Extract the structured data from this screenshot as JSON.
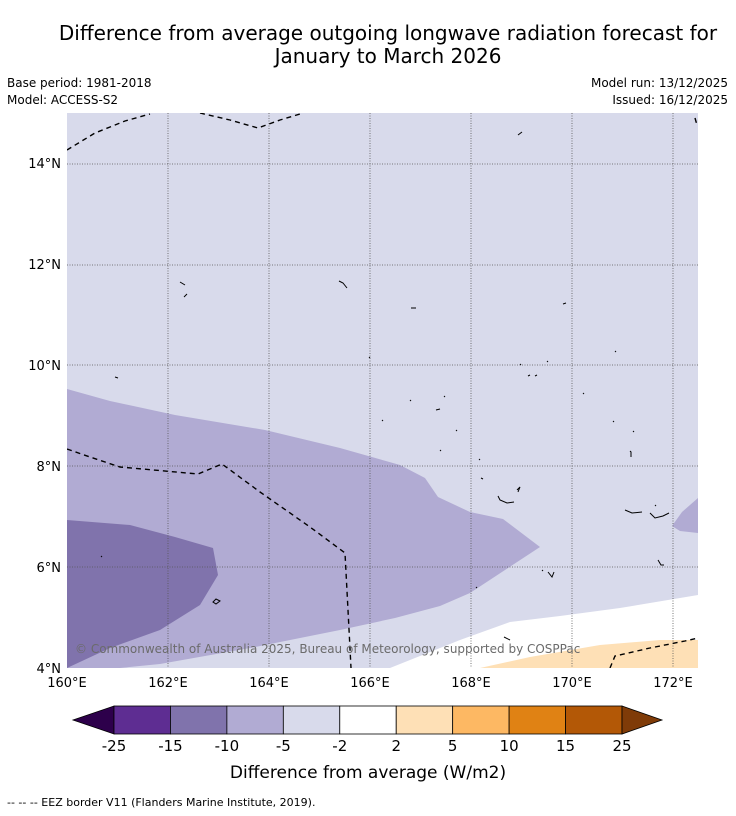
{
  "title": {
    "line1": "Difference from average outgoing longwave radiation forecast for",
    "line2": "January to March 2026"
  },
  "meta": {
    "base_period": "Base period: 1981-2018",
    "model": "Model: ACCESS-S2",
    "model_run": "Model run: 13/12/2025",
    "issued": "Issued: 16/12/2025"
  },
  "map": {
    "lat_labels": [
      "14°N",
      "12°N",
      "10°N",
      "8°N",
      "6°N",
      "4°N"
    ],
    "lon_labels": [
      "160°E",
      "162°E",
      "164°E",
      "166°E",
      "168°E",
      "170°E",
      "172°E"
    ],
    "copyright": "© Commonwealth of Australia 2025, Bureau of Meteorology, supported by COSPPac"
  },
  "colorbar": {
    "ticks": [
      "-25",
      "-15",
      "-10",
      "-5",
      "-2",
      "2",
      "5",
      "10",
      "15",
      "25"
    ],
    "colors": [
      "#2d004b",
      "#5e2d92",
      "#8073ac",
      "#b1abd3",
      "#d8daeb",
      "#ffffff",
      "#fee0b6",
      "#fdb863",
      "#e08214",
      "#b35806",
      "#7f3b08"
    ],
    "label": "Difference from average (W/m2)"
  },
  "footer": {
    "legend": "--  --  -- EEZ border V11 (Flanders Marine Institute, 2019)."
  }
}
